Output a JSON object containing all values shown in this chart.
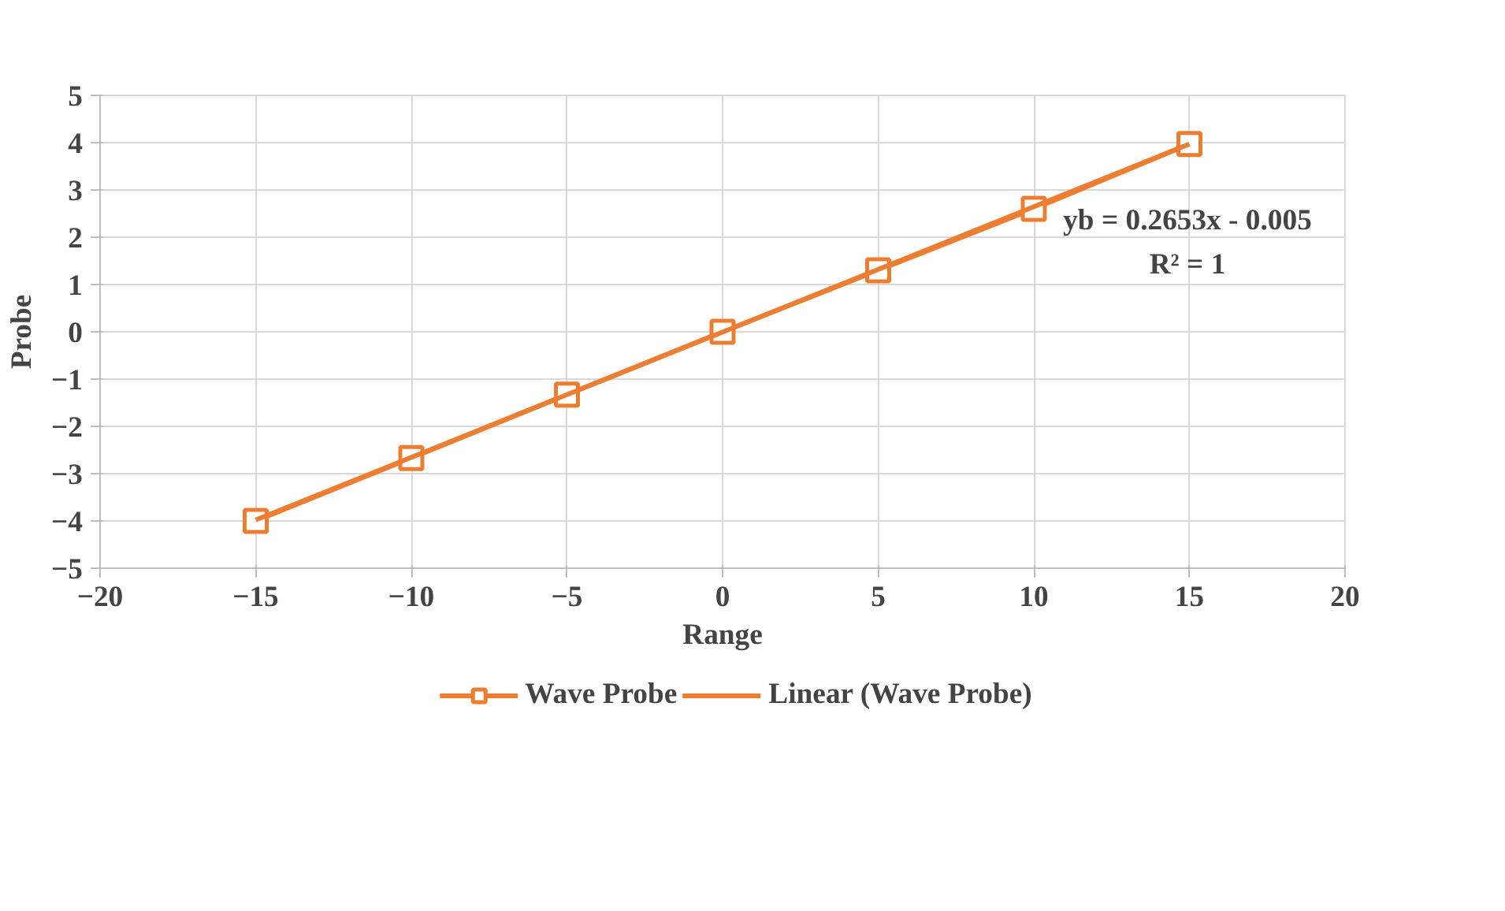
{
  "chart_data": {
    "type": "line",
    "xlabel": "Range",
    "ylabel": "Probe",
    "xlim": [
      -20,
      20
    ],
    "ylim": [
      -5,
      5
    ],
    "xticks": [
      -20,
      -15,
      -10,
      -5,
      0,
      5,
      10,
      15,
      20
    ],
    "yticks": [
      -5,
      -4,
      -3,
      -2,
      -1,
      0,
      1,
      2,
      3,
      4,
      5
    ],
    "grid": true,
    "legend": "bottom",
    "series": [
      {
        "name": "Wave Probe",
        "color": "#ed7d31",
        "x": [
          -15,
          -10,
          -5,
          0,
          5,
          10,
          15
        ],
        "values": [
          -4,
          -2.67,
          -1.33,
          0,
          1.3,
          2.6,
          3.97
        ],
        "marker": "square"
      },
      {
        "name": "Linear (Wave Probe)",
        "color": "#ed7d31",
        "type": "line",
        "x": [
          -15,
          15
        ],
        "values": [
          -3.98,
          3.97
        ],
        "marker": "none"
      }
    ],
    "annotations": [
      "yb = 0.2653x - 0.005",
      "R² = 1"
    ]
  }
}
